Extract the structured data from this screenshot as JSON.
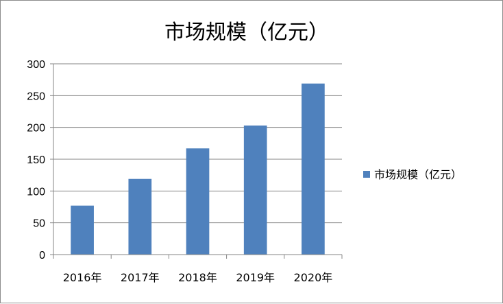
{
  "chart_data": {
    "type": "bar",
    "title": "市场规模（亿元）",
    "categories": [
      "2016年",
      "2017年",
      "2018年",
      "2019年",
      "2020年"
    ],
    "series": [
      {
        "name": "市场规模（亿元）",
        "values": [
          77,
          119,
          167,
          203,
          269
        ],
        "color": "#4f81bd"
      }
    ],
    "ylim": [
      0,
      300
    ],
    "yticks": [
      0,
      50,
      100,
      150,
      200,
      250,
      300
    ],
    "grid": true,
    "legend": "right"
  }
}
